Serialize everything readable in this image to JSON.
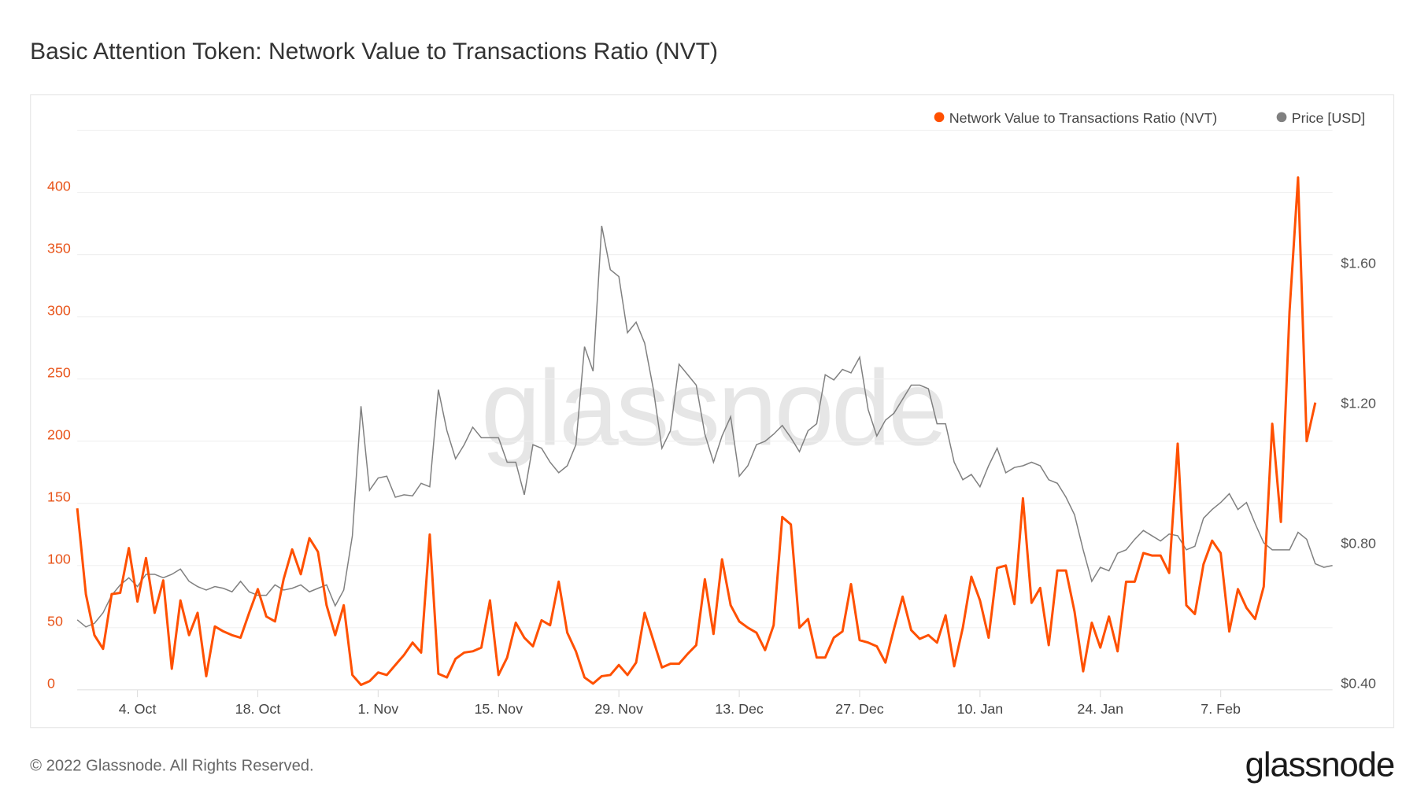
{
  "title": "Basic Attention Token: Network Value to Transactions Ratio (NVT)",
  "footer": "© 2022 Glassnode. All Rights Reserved.",
  "logo": "glassnode",
  "watermark": "glassnode",
  "colors": {
    "nvt": "#ff5000",
    "price": "#808080",
    "left_axis": "#e8541a"
  },
  "chart_data": {
    "type": "line",
    "title": "Basic Attention Token: Network Value to Transactions Ratio (NVT)",
    "legend": {
      "placement": "top-right",
      "entries": [
        "Network Value to Transactions Ratio (NVT)",
        "Price [USD]"
      ]
    },
    "grid": true,
    "x_tick_labels": [
      "4. Oct",
      "18. Oct",
      "1. Nov",
      "15. Nov",
      "29. Nov",
      "13. Dec",
      "27. Dec",
      "10. Jan",
      "24. Jan",
      "7. Feb"
    ],
    "x_tick_dates": [
      "2021-10-04",
      "2021-10-18",
      "2021-11-01",
      "2021-11-15",
      "2021-11-29",
      "2021-12-13",
      "2021-12-27",
      "2022-01-10",
      "2022-01-24",
      "2022-02-07"
    ],
    "y_left": {
      "ticks": [
        0,
        50,
        100,
        150,
        200,
        250,
        300,
        350,
        400
      ],
      "tick_labels": [
        "0",
        "50",
        "100",
        "150",
        "200",
        "250",
        "300",
        "350",
        "400"
      ],
      "range": [
        0,
        450
      ]
    },
    "y_right": {
      "ticks": [
        0.4,
        0.8,
        1.2,
        1.6
      ],
      "tick_labels": [
        "$0.40",
        "$0.80",
        "$1.20",
        "$1.60"
      ],
      "range": [
        0.4,
        1.6
      ]
    },
    "x_start": "2021-09-27",
    "x_step_days": 1,
    "series": [
      {
        "name": "Network Value to Transactions Ratio (NVT)",
        "axis": "left",
        "values": [
          146,
          77,
          44,
          33,
          77,
          78,
          114,
          71,
          106,
          62,
          88,
          17,
          72,
          44,
          62,
          11,
          51,
          47,
          44,
          42,
          62,
          81,
          59,
          55,
          89,
          113,
          93,
          122,
          111,
          68,
          44,
          68,
          12,
          4,
          7,
          14,
          12,
          20,
          28,
          38,
          30,
          125,
          13,
          10,
          25,
          30,
          31,
          34,
          72,
          12,
          26,
          54,
          42,
          35,
          56,
          52,
          87,
          46,
          31,
          10,
          5,
          11,
          12,
          20,
          12,
          22,
          62,
          40,
          18,
          21,
          21,
          29,
          36,
          89,
          45,
          105,
          68,
          55,
          50,
          46,
          32,
          52,
          139,
          133,
          50,
          57,
          26,
          26,
          42,
          47,
          85,
          40,
          38,
          35,
          22,
          49,
          75,
          48,
          41,
          44,
          38,
          60,
          19,
          50,
          91,
          72,
          42,
          98,
          100,
          69,
          154,
          70,
          82,
          36,
          96,
          96,
          63,
          15,
          54,
          34,
          59,
          31,
          87,
          87,
          110,
          108,
          108,
          94,
          198,
          68,
          61,
          101,
          120,
          110,
          47,
          81,
          66,
          57,
          83,
          214,
          135,
          304,
          412,
          200,
          231
        ]
      },
      {
        "name": "Price [USD]",
        "axis": "right",
        "values": [
          0.6,
          0.58,
          0.59,
          0.62,
          0.67,
          0.7,
          0.72,
          0.695,
          0.73,
          0.73,
          0.72,
          0.73,
          0.745,
          0.71,
          0.695,
          0.685,
          0.695,
          0.69,
          0.68,
          0.71,
          0.68,
          0.67,
          0.67,
          0.7,
          0.685,
          0.69,
          0.7,
          0.68,
          0.69,
          0.7,
          0.64,
          0.685,
          0.84,
          1.21,
          0.97,
          1.005,
          1.01,
          0.95,
          0.957,
          0.954,
          0.99,
          0.98,
          1.257,
          1.14,
          1.06,
          1.1,
          1.15,
          1.12,
          1.12,
          1.12,
          1.05,
          1.05,
          0.957,
          1.1,
          1.09,
          1.05,
          1.02,
          1.04,
          1.1,
          1.38,
          1.31,
          1.725,
          1.6,
          1.58,
          1.42,
          1.45,
          1.39,
          1.26,
          1.09,
          1.14,
          1.33,
          1.3,
          1.27,
          1.13,
          1.05,
          1.125,
          1.18,
          1.01,
          1.04,
          1.1,
          1.11,
          1.13,
          1.155,
          1.12,
          1.08,
          1.14,
          1.16,
          1.3,
          1.285,
          1.315,
          1.305,
          1.35,
          1.2,
          1.125,
          1.17,
          1.19,
          1.23,
          1.27,
          1.27,
          1.26,
          1.16,
          1.16,
          1.05,
          1.0,
          1.015,
          0.98,
          1.04,
          1.09,
          1.02,
          1.035,
          1.04,
          1.05,
          1.04,
          1.0,
          0.99,
          0.95,
          0.9,
          0.8,
          0.71,
          0.75,
          0.74,
          0.79,
          0.8,
          0.83,
          0.855,
          0.84,
          0.825,
          0.845,
          0.84,
          0.8,
          0.81,
          0.89,
          0.915,
          0.935,
          0.96,
          0.915,
          0.935,
          0.875,
          0.82,
          0.8,
          0.8,
          0.8,
          0.85,
          0.83,
          0.76,
          0.75,
          0.755
        ]
      }
    ]
  }
}
